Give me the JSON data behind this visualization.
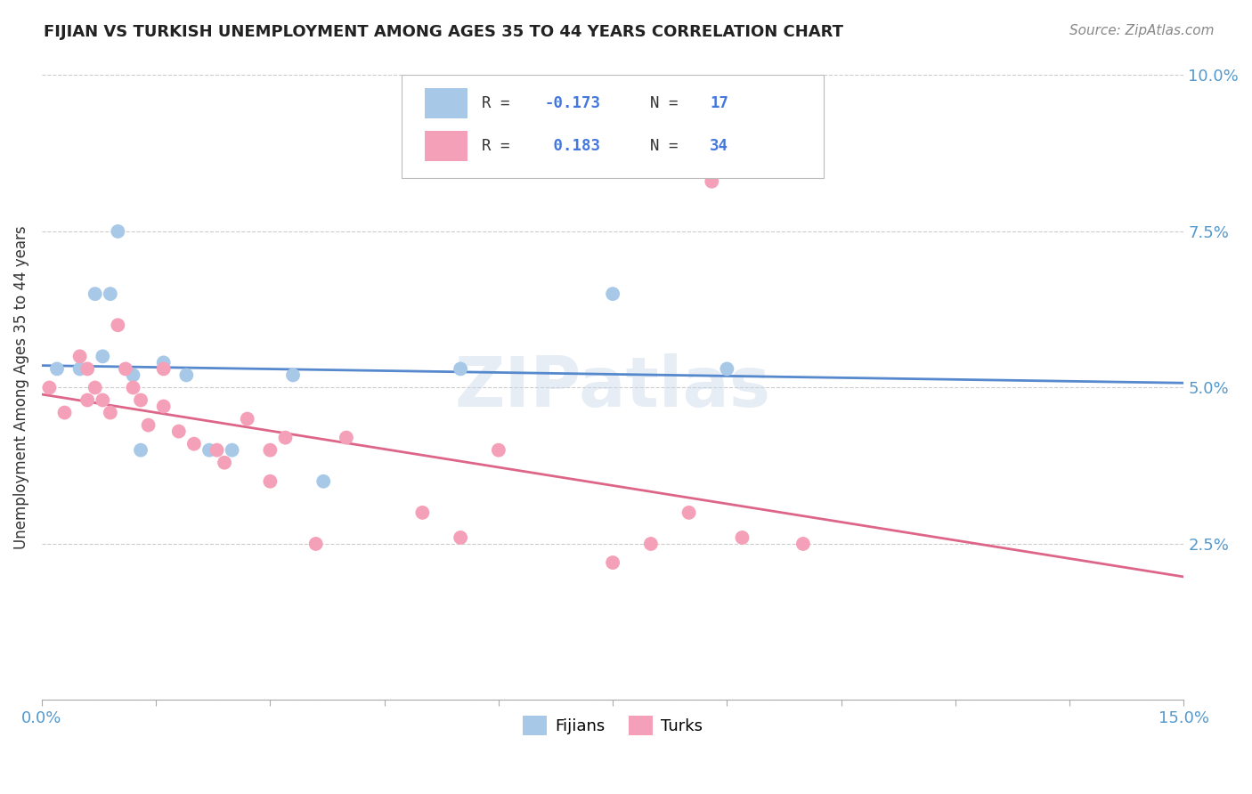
{
  "title": "FIJIAN VS TURKISH UNEMPLOYMENT AMONG AGES 35 TO 44 YEARS CORRELATION CHART",
  "source": "Source: ZipAtlas.com",
  "ylabel": "Unemployment Among Ages 35 to 44 years",
  "xlim": [
    0.0,
    0.15
  ],
  "ylim": [
    0.0,
    0.1
  ],
  "xticks": [
    0.0,
    0.015,
    0.03,
    0.045,
    0.06,
    0.075,
    0.09,
    0.105,
    0.12,
    0.135,
    0.15
  ],
  "xtick_labels_show": {
    "0.0": "0.0%",
    "0.15": "15.0%"
  },
  "yticks": [
    0.0,
    0.025,
    0.05,
    0.075,
    0.1
  ],
  "yticklabels": [
    "",
    "2.5%",
    "5.0%",
    "7.5%",
    "10.0%"
  ],
  "fijian_color": "#a8c8e8",
  "turk_color": "#f4a0b8",
  "fijian_line_color": "#5588cc",
  "turk_line_color": "#dd6688",
  "background_color": "#ffffff",
  "grid_color": "#cccccc",
  "fijian_x": [
    0.002,
    0.005,
    0.007,
    0.008,
    0.009,
    0.01,
    0.012,
    0.013,
    0.016,
    0.019,
    0.022,
    0.025,
    0.033,
    0.037,
    0.055,
    0.075,
    0.09
  ],
  "fijian_y": [
    0.053,
    0.053,
    0.065,
    0.055,
    0.065,
    0.075,
    0.052,
    0.04,
    0.054,
    0.052,
    0.04,
    0.04,
    0.052,
    0.035,
    0.053,
    0.065,
    0.053
  ],
  "turk_x": [
    0.001,
    0.003,
    0.005,
    0.006,
    0.006,
    0.007,
    0.008,
    0.009,
    0.01,
    0.011,
    0.012,
    0.013,
    0.014,
    0.016,
    0.016,
    0.018,
    0.02,
    0.023,
    0.024,
    0.027,
    0.03,
    0.03,
    0.032,
    0.036,
    0.04,
    0.05,
    0.055,
    0.06,
    0.075,
    0.08,
    0.085,
    0.088,
    0.092,
    0.1
  ],
  "turk_y": [
    0.05,
    0.046,
    0.055,
    0.053,
    0.048,
    0.05,
    0.048,
    0.046,
    0.06,
    0.053,
    0.05,
    0.048,
    0.044,
    0.053,
    0.047,
    0.043,
    0.041,
    0.04,
    0.038,
    0.045,
    0.04,
    0.035,
    0.042,
    0.025,
    0.042,
    0.03,
    0.026,
    0.04,
    0.022,
    0.025,
    0.03,
    0.083,
    0.026,
    0.025
  ]
}
